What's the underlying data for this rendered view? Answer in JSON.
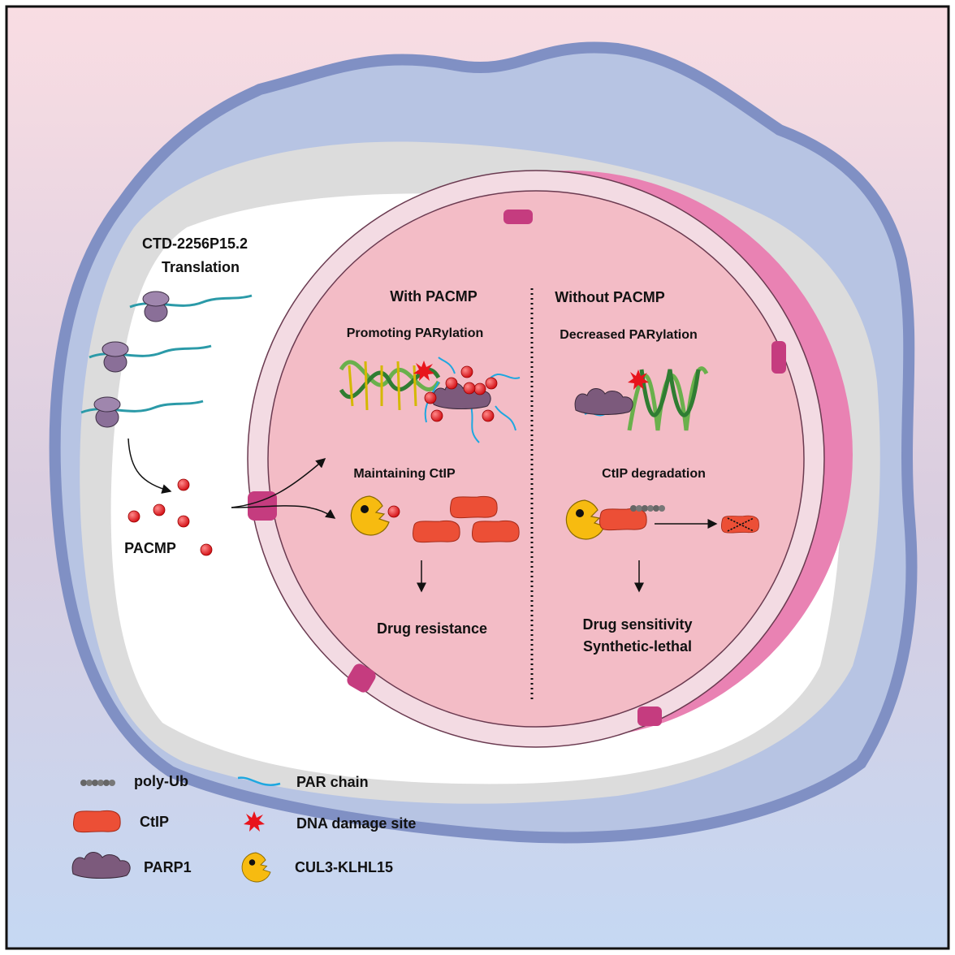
{
  "cytoplasm": {
    "gene_label": "CTD-2256P15.2",
    "process_label": "Translation",
    "peptide_label": "PACMP"
  },
  "nucleus": {
    "left_panel": {
      "title": "With PACMP",
      "parylation": "Promoting PARylation",
      "ctip": "Maintaining CtIP",
      "outcome": "Drug resistance"
    },
    "right_panel": {
      "title": "Without PACMP",
      "parylation": "Decreased PARylation",
      "ctip": "CtIP degradation",
      "outcome_line1": "Drug sensitivity",
      "outcome_line2": "Synthetic-lethal"
    }
  },
  "legend": [
    {
      "icon": "poly-ub-icon",
      "label": "poly-Ub"
    },
    {
      "icon": "par-chain-icon",
      "label": "PAR chain"
    },
    {
      "icon": "ctip-icon",
      "label": "CtIP"
    },
    {
      "icon": "dna-damage-icon",
      "label": "DNA damage site"
    },
    {
      "icon": "parp1-icon",
      "label": "PARP1"
    },
    {
      "icon": "cul3-klhl15-icon",
      "label": "CUL3-KLHL15"
    }
  ],
  "colors": {
    "background_top": "#f9dde3",
    "background_bottom": "#c5d8f3",
    "membrane": "#8090c4",
    "nucleoplasm": "#f3bcc6",
    "envelope": "#f3dbe3",
    "pacmp": "#e8141c",
    "ctip": "#ec4f36",
    "parp1": "#7c5a7c",
    "cul3": "#f7bb10",
    "par_chain": "#1ea7e0"
  }
}
